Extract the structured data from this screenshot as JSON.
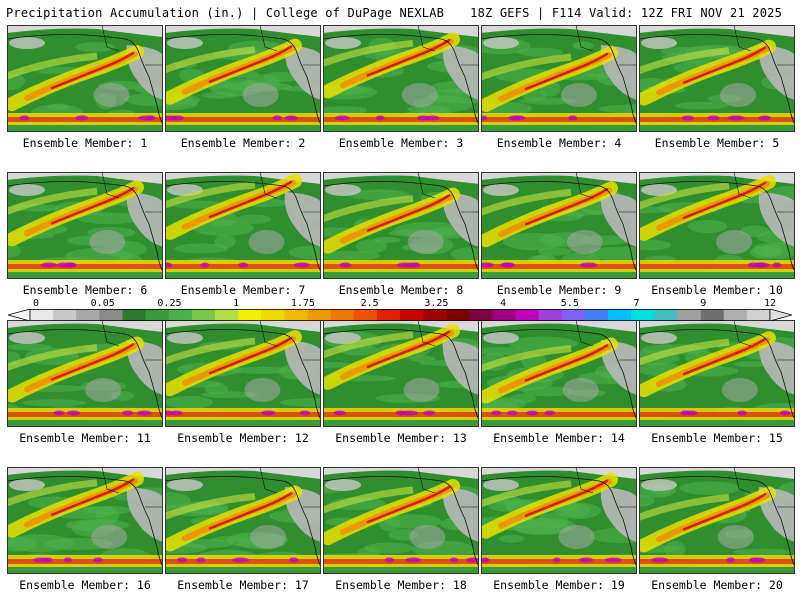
{
  "header": {
    "title_left": "Precipitation Accumulation (in.) | College of DuPage NEXLAB",
    "title_right": "18Z GEFS | F114 Valid: 12Z FRI NOV 21 2025"
  },
  "members": [
    {
      "label": "Ensemble Member: 1"
    },
    {
      "label": "Ensemble Member: 2"
    },
    {
      "label": "Ensemble Member: 3"
    },
    {
      "label": "Ensemble Member: 4"
    },
    {
      "label": "Ensemble Member: 5"
    },
    {
      "label": "Ensemble Member: 6"
    },
    {
      "label": "Ensemble Member: 7"
    },
    {
      "label": "Ensemble Member: 8"
    },
    {
      "label": "Ensemble Member: 9"
    },
    {
      "label": "Ensemble Member: 10"
    },
    {
      "label": "Ensemble Member: 11"
    },
    {
      "label": "Ensemble Member: 12"
    },
    {
      "label": "Ensemble Member: 13"
    },
    {
      "label": "Ensemble Member: 14"
    },
    {
      "label": "Ensemble Member: 15"
    },
    {
      "label": "Ensemble Member: 16"
    },
    {
      "label": "Ensemble Member: 17"
    },
    {
      "label": "Ensemble Member: 18"
    },
    {
      "label": "Ensemble Member: 19"
    },
    {
      "label": "Ensemble Member: 20"
    }
  ],
  "colorbar": {
    "labels": [
      "0",
      "0.05",
      "0.25",
      "1",
      "1.75",
      "2.5",
      "3.25",
      "4",
      "5.5",
      "7",
      "9",
      "12"
    ],
    "colors": [
      "#e8e8e8",
      "#c8c8c8",
      "#a8a8a8",
      "#8a8a8a",
      "#2c7a2c",
      "#3a9a3a",
      "#4ab04a",
      "#78c848",
      "#b0e040",
      "#f0f000",
      "#f0d800",
      "#f0b800",
      "#f09800",
      "#f07800",
      "#f05000",
      "#e02000",
      "#c80000",
      "#a00000",
      "#800000",
      "#800040",
      "#a00080",
      "#c000c0",
      "#a040e0",
      "#8060ff",
      "#4080ff",
      "#00c0ff",
      "#00e0e0",
      "#40c0c0",
      "#a0a0a0",
      "#707070",
      "#b0b0b0",
      "#d0d0d0"
    ]
  }
}
